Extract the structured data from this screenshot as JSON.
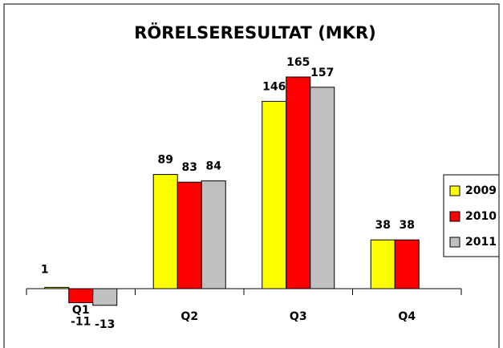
{
  "chart_data": {
    "type": "bar",
    "title": "RÖRELSERESULTAT (MKR)",
    "categories": [
      "Q1",
      "Q2",
      "Q3",
      "Q4"
    ],
    "series": [
      {
        "name": "2009",
        "color": "#ffff00",
        "values": [
          1,
          89,
          146,
          38
        ]
      },
      {
        "name": "2010",
        "color": "#ff0000",
        "values": [
          -11,
          83,
          165,
          38
        ]
      },
      {
        "name": "2011",
        "color": "#c0c0c0",
        "values": [
          -13,
          84,
          157,
          null
        ]
      }
    ],
    "ylim": [
      -30,
      180
    ],
    "legend": "right"
  }
}
